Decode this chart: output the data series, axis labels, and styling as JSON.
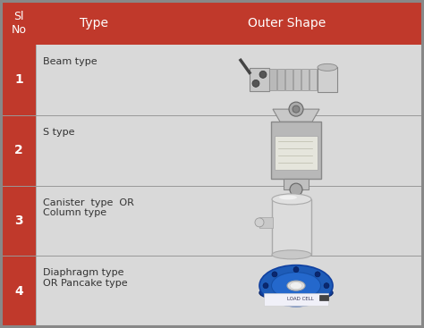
{
  "header_bg": "#c0392b",
  "header_text_color": "#ffffff",
  "row_bg": "#d9d9d9",
  "left_col_bg": "#c0392b",
  "left_col_text": "#ffffff",
  "border_color": "#999999",
  "table_border": "#888888",
  "col1_header": "Sl\nNo",
  "col2_header": "Type",
  "col3_header": "Outer Shape",
  "rows": [
    {
      "num": "1",
      "type": "Beam type"
    },
    {
      "num": "2",
      "type": "S type"
    },
    {
      "num": "3",
      "type": "Canister  type  OR\nColumn type"
    },
    {
      "num": "4",
      "type": "Diaphragm type\nOR Pancake type"
    }
  ],
  "fig_width": 4.74,
  "fig_height": 3.67,
  "dpi": 100
}
